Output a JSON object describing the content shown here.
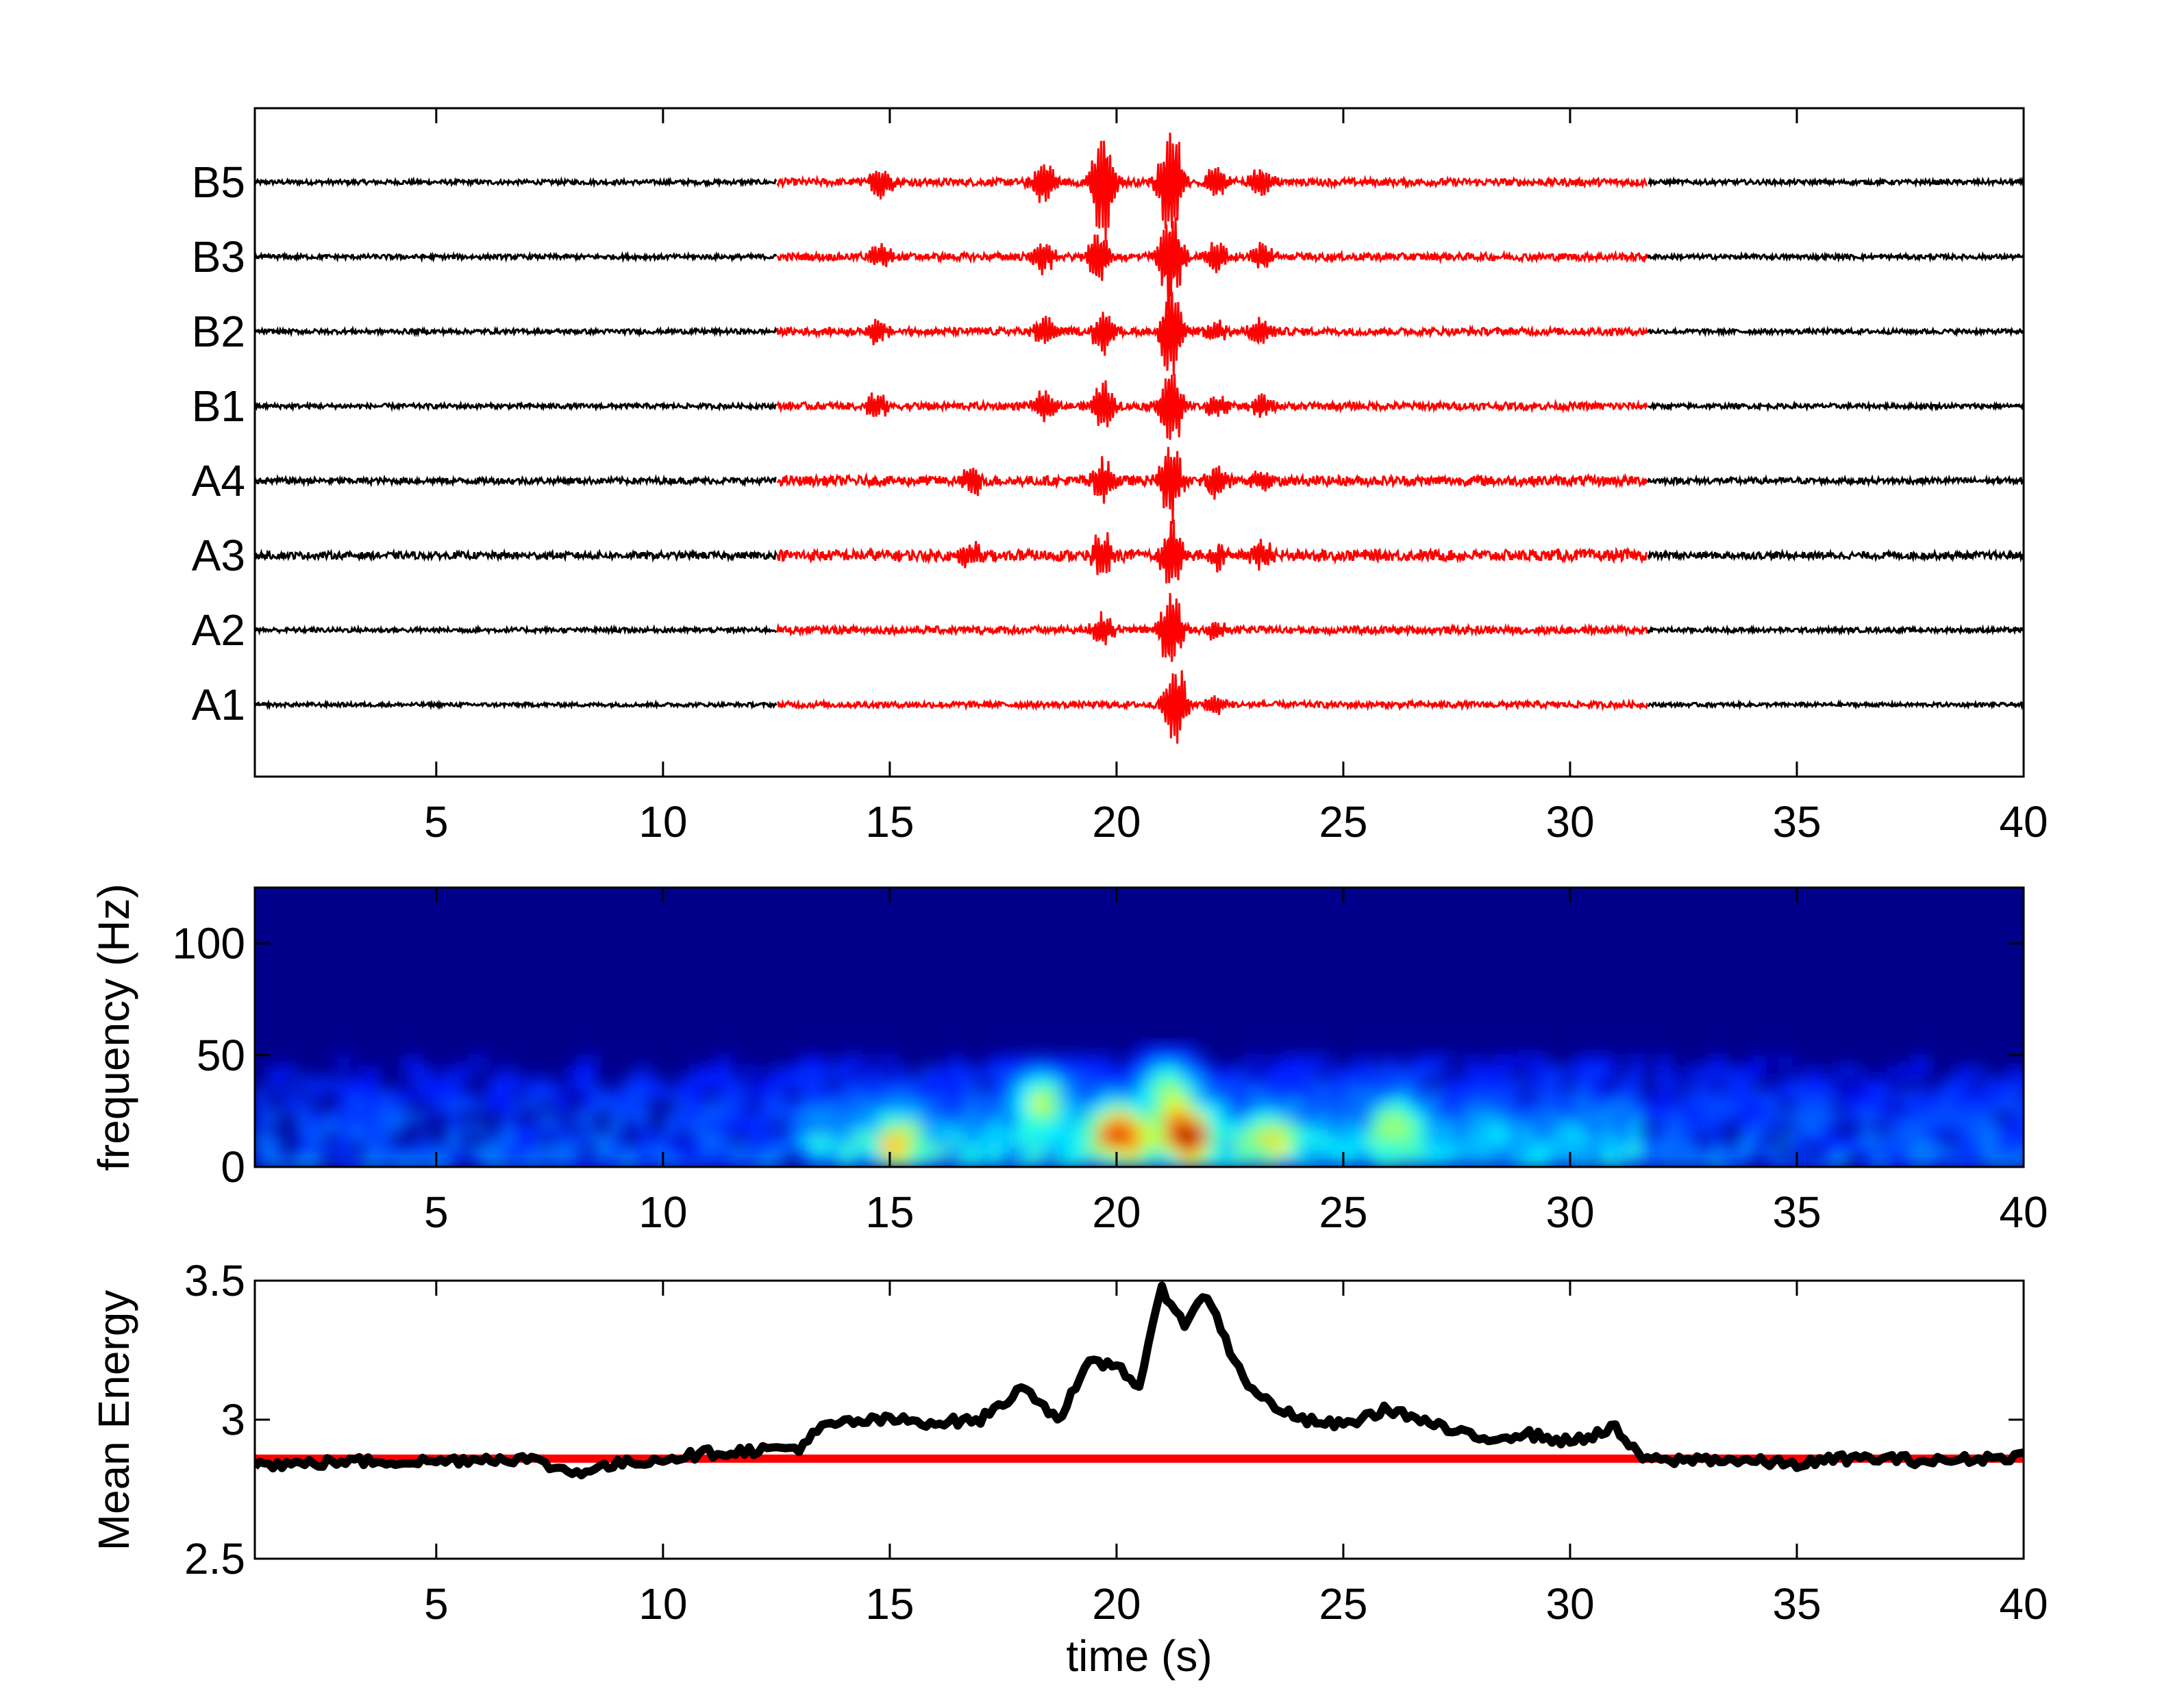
{
  "figure": {
    "panels": 3,
    "colors": {
      "background": "#ffffff",
      "axes": "#000000",
      "detection": "#ff0000",
      "baseline_trace": "#000000",
      "spectrogram_floor": "#00008b"
    }
  },
  "chart_data": [
    {
      "type": "line",
      "title": "",
      "xlabel": "",
      "ylabel": "",
      "xlim": [
        1,
        40
      ],
      "x_ticks": [
        5,
        10,
        15,
        20,
        25,
        30,
        35,
        40
      ],
      "grid": false,
      "channels": [
        "B5",
        "B3",
        "B2",
        "B1",
        "A4",
        "A3",
        "A2",
        "A1"
      ],
      "highlight_window": {
        "start": 12.5,
        "end": 31.7,
        "color": "#ff0000"
      },
      "series": [
        {
          "name": "B5",
          "noise_level": 0.06,
          "bursts": [
            [
              14.7,
              0.5
            ],
            [
              18.3,
              0.7
            ],
            [
              19.6,
              1.7
            ],
            [
              21.1,
              1.8
            ],
            [
              22.1,
              0.5
            ],
            [
              23.1,
              0.5
            ]
          ]
        },
        {
          "name": "B3",
          "noise_level": 0.06,
          "bursts": [
            [
              14.7,
              0.4
            ],
            [
              18.3,
              0.5
            ],
            [
              19.5,
              0.8
            ],
            [
              21.1,
              1.6
            ],
            [
              22.1,
              0.5
            ],
            [
              23.1,
              0.4
            ]
          ]
        },
        {
          "name": "B2",
          "noise_level": 0.06,
          "bursts": [
            [
              14.6,
              0.4
            ],
            [
              18.3,
              0.5
            ],
            [
              19.6,
              0.7
            ],
            [
              21.1,
              1.4
            ],
            [
              22.1,
              0.4
            ],
            [
              23.1,
              0.4
            ]
          ]
        },
        {
          "name": "B1",
          "noise_level": 0.06,
          "bursts": [
            [
              14.6,
              0.4
            ],
            [
              18.3,
              0.5
            ],
            [
              19.6,
              0.8
            ],
            [
              21.1,
              1.3
            ],
            [
              22.1,
              0.4
            ],
            [
              23.1,
              0.4
            ]
          ]
        },
        {
          "name": "A4",
          "noise_level": 0.08,
          "bursts": [
            [
              16.7,
              0.4
            ],
            [
              19.6,
              0.6
            ],
            [
              21.1,
              1.2
            ],
            [
              22.1,
              0.5
            ],
            [
              23.1,
              0.4
            ]
          ]
        },
        {
          "name": "A3",
          "noise_level": 0.09,
          "bursts": [
            [
              16.7,
              0.4
            ],
            [
              19.6,
              0.7
            ],
            [
              21.1,
              1.1
            ],
            [
              22.1,
              0.4
            ],
            [
              23.1,
              0.4
            ]
          ]
        },
        {
          "name": "A2",
          "noise_level": 0.06,
          "bursts": [
            [
              19.6,
              0.5
            ],
            [
              21.1,
              1.2
            ],
            [
              22.1,
              0.3
            ]
          ]
        },
        {
          "name": "A1",
          "noise_level": 0.05,
          "bursts": [
            [
              21.2,
              1.3
            ],
            [
              22.1,
              0.3
            ]
          ]
        }
      ]
    },
    {
      "type": "heatmap",
      "title": "",
      "xlabel": "",
      "ylabel": "frequency (Hz)",
      "xlim": [
        1,
        40
      ],
      "ylim": [
        0,
        125
      ],
      "x_ticks": [
        5,
        10,
        15,
        20,
        25,
        30,
        35,
        40
      ],
      "y_ticks": [
        0,
        50,
        100
      ],
      "colormap": "jet",
      "hot_spots": [
        {
          "time": 21.4,
          "freq": 15,
          "intensity": 1.0
        },
        {
          "time": 19.9,
          "freq": 16,
          "intensity": 0.85
        },
        {
          "time": 18.2,
          "freq": 30,
          "intensity": 0.5
        },
        {
          "time": 21.0,
          "freq": 35,
          "intensity": 0.45
        },
        {
          "time": 15.0,
          "freq": 12,
          "intensity": 0.45
        },
        {
          "time": 26.0,
          "freq": 20,
          "intensity": 0.4
        },
        {
          "time": 23.3,
          "freq": 12,
          "intensity": 0.45
        }
      ]
    },
    {
      "type": "line",
      "title": "",
      "xlabel": "time (s)",
      "ylabel": "Mean Energy",
      "xlim": [
        1,
        40
      ],
      "ylim": [
        2.5,
        3.5
      ],
      "x_ticks": [
        5,
        10,
        15,
        20,
        25,
        30,
        35,
        40
      ],
      "y_ticks": [
        2.5,
        3,
        3.5
      ],
      "y_tick_labels": [
        "2.5",
        "3",
        "3.5"
      ],
      "threshold": {
        "value": 2.86,
        "color": "#ff0000"
      },
      "series": [
        {
          "name": "",
          "color": "#000000",
          "x": [
            1,
            2,
            3,
            4,
            5,
            6,
            7,
            8,
            9,
            10,
            11,
            12,
            13,
            13.5,
            14,
            15,
            16,
            17,
            18,
            18.7,
            19.4,
            20,
            20.5,
            21,
            21.5,
            22,
            22.5,
            23,
            24,
            25,
            26,
            27,
            28,
            29,
            30,
            31,
            31.5,
            32,
            33,
            34,
            35,
            36,
            37,
            38,
            39,
            40
          ],
          "y": [
            2.84,
            2.84,
            2.85,
            2.85,
            2.85,
            2.86,
            2.86,
            2.81,
            2.84,
            2.86,
            2.88,
            2.89,
            2.9,
            2.97,
            2.99,
            3.0,
            2.99,
            3.0,
            3.12,
            3.0,
            3.2,
            3.2,
            3.12,
            3.47,
            3.35,
            3.45,
            3.25,
            3.1,
            3.0,
            2.98,
            3.04,
            2.98,
            2.93,
            2.95,
            2.92,
            2.97,
            2.87,
            2.85,
            2.86,
            2.85,
            2.84,
            2.86,
            2.86,
            2.85,
            2.86,
            2.87
          ]
        }
      ]
    }
  ]
}
